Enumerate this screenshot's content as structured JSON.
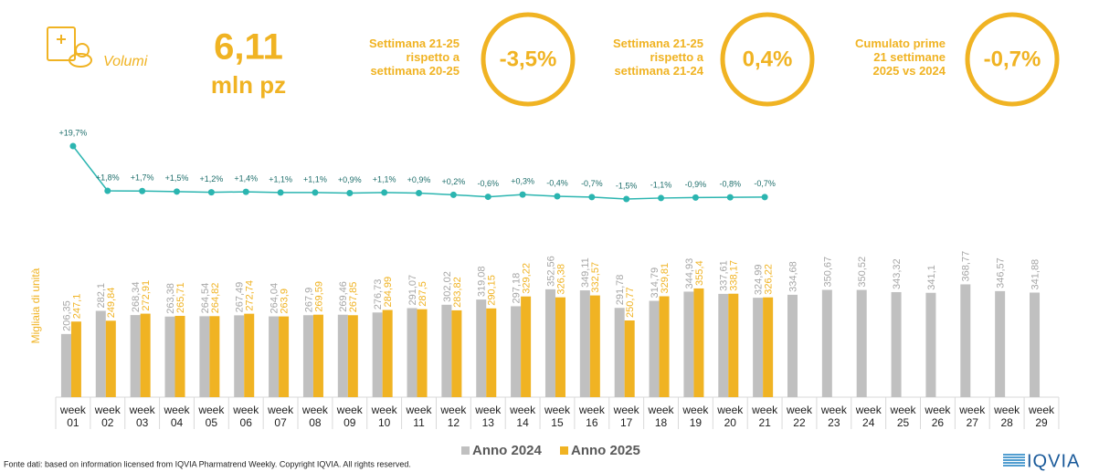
{
  "header": {
    "volume_label": "Volumi",
    "volume_value": "6,11",
    "volume_unit": "mln pz",
    "kpis": [
      {
        "lines": [
          "Settimana 21-25",
          "rispetto a",
          "settimana 20-25"
        ],
        "value": "-3,5%"
      },
      {
        "lines": [
          "Settimana 21-25",
          "rispetto a",
          "settimana 21-24"
        ],
        "value": "0,4%"
      },
      {
        "lines": [
          "Cumulato prime",
          "21 settimane",
          "2025 vs 2024"
        ],
        "value": "-0,7%"
      }
    ]
  },
  "chart_data": {
    "type": "bar",
    "y_label": "Migliaia di unità",
    "categories": [
      "week 01",
      "week 02",
      "week 03",
      "week 04",
      "week 05",
      "week 06",
      "week 07",
      "week 08",
      "week 09",
      "week 10",
      "week 11",
      "week 12",
      "week 13",
      "week 14",
      "week 15",
      "week 16",
      "week 17",
      "week 18",
      "week 19",
      "week 20",
      "week 21",
      "week 22",
      "week 23",
      "week 24",
      "week 25",
      "week 26",
      "week 27",
      "week 28",
      "week 29"
    ],
    "ylim": [
      0,
      400
    ],
    "y2lim": [
      -2,
      20
    ],
    "series": [
      {
        "name": "Anno 2024",
        "color": "#c0c0c0",
        "label_color": "#a6a6a6",
        "values": [
          206.35,
          282.1,
          268.34,
          263.38,
          264.54,
          267.49,
          264.04,
          267.9,
          269.46,
          276.73,
          291.07,
          302.02,
          319.08,
          297.18,
          352.56,
          349.11,
          291.78,
          314.79,
          344.93,
          337.61,
          324.99,
          334.68,
          350.67,
          350.52,
          343.32,
          341.1,
          368.77,
          346.57,
          341.88
        ],
        "value_labels": [
          "206,35",
          "282,1",
          "268,34",
          "263,38",
          "264,54",
          "267,49",
          "264,04",
          "267,9",
          "269,46",
          "276,73",
          "291,07",
          "302,02",
          "319,08",
          "297,18",
          "352,56",
          "349,11",
          "291,78",
          "314,79",
          "344,93",
          "337,61",
          "324,99",
          "334,68",
          "350,67",
          "350,52",
          "343,32",
          "341,1",
          "368,77",
          "346,57",
          "341,88"
        ]
      },
      {
        "name": "Anno 2025",
        "color": "#f0b323",
        "label_color": "#f0b323",
        "values": [
          247.1,
          249.84,
          272.91,
          265.71,
          264.82,
          272.74,
          263.9,
          269.59,
          267.85,
          284.99,
          287.5,
          283.82,
          290.15,
          329.22,
          326.38,
          332.57,
          250.77,
          329.81,
          355.4,
          338.17,
          326.22,
          null,
          null,
          null,
          null,
          null,
          null,
          null,
          null
        ],
        "value_labels": [
          "247,1",
          "249,84",
          "272,91",
          "265,71",
          "264,82",
          "272,74",
          "263,9",
          "269,59",
          "267,85",
          "284,99",
          "287,5",
          "283,82",
          "290,15",
          "329,22",
          "326,38",
          "332,57",
          "250,77",
          "329,81",
          "355,4",
          "338,17",
          "326,22",
          null,
          null,
          null,
          null,
          null,
          null,
          null,
          null
        ]
      },
      {
        "type": "line",
        "axis": "y2",
        "color": "#2bb5b0",
        "values": [
          19.7,
          1.8,
          1.7,
          1.5,
          1.2,
          1.4,
          1.1,
          1.1,
          0.9,
          1.1,
          0.9,
          0.2,
          -0.6,
          0.3,
          -0.4,
          -0.7,
          -1.5,
          -1.1,
          -0.9,
          -0.8,
          -0.7,
          null,
          null,
          null,
          null,
          null,
          null,
          null,
          null
        ],
        "value_labels": [
          "+19,7%",
          "+1,8%",
          "+1,7%",
          "+1,5%",
          "+1,2%",
          "+1,4%",
          "+1,1%",
          "+1,1%",
          "+0,9%",
          "+1,1%",
          "+0,9%",
          "+0,2%",
          "-0,6%",
          "+0,3%",
          "-0,4%",
          "-0,7%",
          "-1,5%",
          "-1,1%",
          "-0,9%",
          "-0,8%",
          "-0,7%",
          null,
          null,
          null,
          null,
          null,
          null,
          null,
          null
        ]
      }
    ]
  },
  "footer": {
    "source": "Fonte dati: based on information licensed from IQVIA Pharmatrend Weekly. Copyright IQVIA. All rights reserved.",
    "logo": "IQVIA"
  }
}
